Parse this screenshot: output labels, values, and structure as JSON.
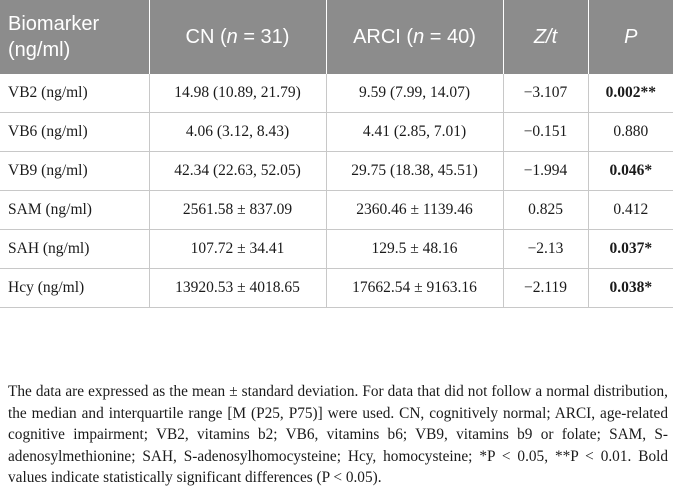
{
  "table": {
    "headers": [
      {
        "text": "Biomarker\n(ng/ml)",
        "italic": false
      },
      {
        "text": "CN (n = 31)",
        "italic": false
      },
      {
        "text": "ARCI (n = 40)",
        "italic": false
      },
      {
        "text": "Z/t",
        "italic": true
      },
      {
        "text": "P",
        "italic": true
      }
    ],
    "rows": [
      {
        "biomarker": "VB2 (ng/ml)",
        "cn": "14.98 (10.89, 21.79)",
        "arci": "9.59 (7.99, 14.07)",
        "zt": "−3.107",
        "p": "0.002**",
        "significant": true
      },
      {
        "biomarker": "VB6 (ng/ml)",
        "cn": "4.06 (3.12, 8.43)",
        "arci": "4.41 (2.85, 7.01)",
        "zt": "−0.151",
        "p": "0.880",
        "significant": false
      },
      {
        "biomarker": "VB9 (ng/ml)",
        "cn": "42.34 (22.63, 52.05)",
        "arci": "29.75 (18.38, 45.51)",
        "zt": "−1.994",
        "p": "0.046*",
        "significant": true
      },
      {
        "biomarker": "SAM (ng/ml)",
        "cn": "2561.58 ± 837.09",
        "arci": "2360.46 ± 1139.46",
        "zt": "0.825",
        "p": "0.412",
        "significant": false
      },
      {
        "biomarker": "SAH (ng/ml)",
        "cn": "107.72 ± 34.41",
        "arci": "129.5 ± 48.16",
        "zt": "−2.13",
        "p": "0.037*",
        "significant": true
      },
      {
        "biomarker": "Hcy (ng/ml)",
        "cn": "13920.53 ± 4018.65",
        "arci": "17662.54 ± 9163.16",
        "zt": "−2.119",
        "p": "0.038*",
        "significant": true
      }
    ]
  },
  "footnote": "The data are expressed as the mean ± standard deviation. For data that did not follow a normal distribution, the median and interquartile range [M (P25, P75)] were used. CN, cognitively normal; ARCI, age-related cognitive impairment; VB2, vitamins b2; VB6, vitamins b6; VB9, vitamins b9 or folate; SAM, S-adenosylmethionine; SAH, S-adenosylhomocysteine; Hcy, homocysteine; *P < 0.05, **P < 0.01. Bold values indicate statistically significant differences (P < 0.05)."
}
